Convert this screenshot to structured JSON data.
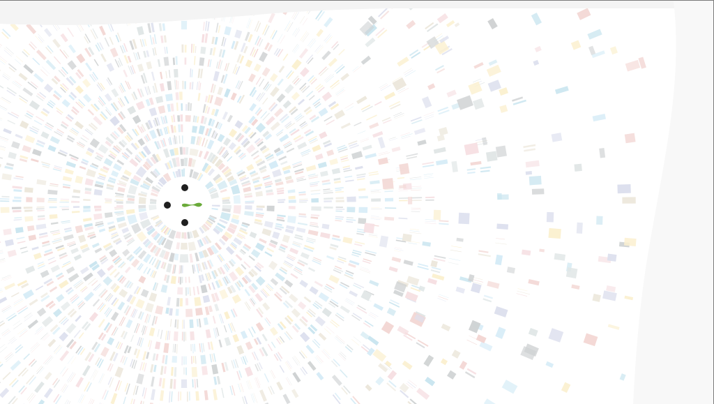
{
  "diagram": {
    "palette": [
      "#cfd2d3",
      "#d6ecf7",
      "#f6dfe2",
      "#fbf0cf",
      "#dde0ee",
      "#ece7db",
      "#e0e6e6",
      "#f3d7d4",
      "#cbe6f0"
    ],
    "dot_color": "#1f1f1f",
    "connector_color": "#6aaa3a",
    "background_color": "#ffffff",
    "panel_color": "#f8f8f8",
    "seed": 7
  }
}
